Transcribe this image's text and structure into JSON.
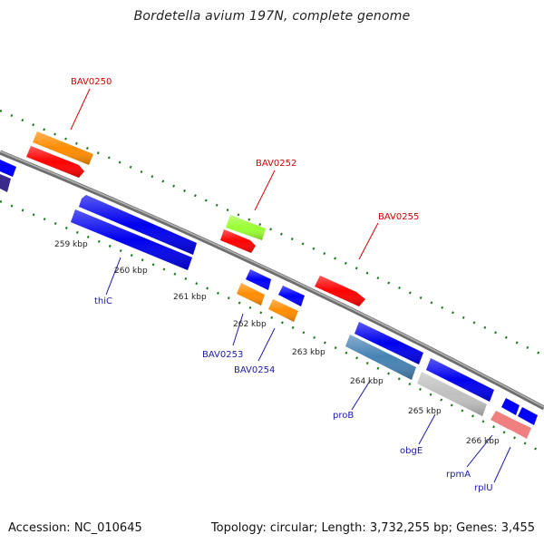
{
  "title": "Bordetella avium 197N, complete genome",
  "accession": "Accession: NC_010645",
  "summary": "Topology: circular; Length: 3,732,255 bp; Genes: 3,455",
  "colors": {
    "backbone": "#8c8c8c",
    "tick": "#1f7a1f",
    "red_label": "#d40000",
    "blue_label": "#1a1aa8"
  },
  "kbp_labels": [
    "259 kbp",
    "260 kbp",
    "261 kbp",
    "262 kbp",
    "263 kbp",
    "264 kbp",
    "265 kbp",
    "266 kbp"
  ],
  "top_labels": [
    "BAV0250",
    "BAV0252",
    "BAV0255"
  ],
  "bottom_labels": [
    "thiC",
    "BAV0253",
    "BAV0254",
    "proB",
    "obgE",
    "rpmA",
    "rplU"
  ]
}
